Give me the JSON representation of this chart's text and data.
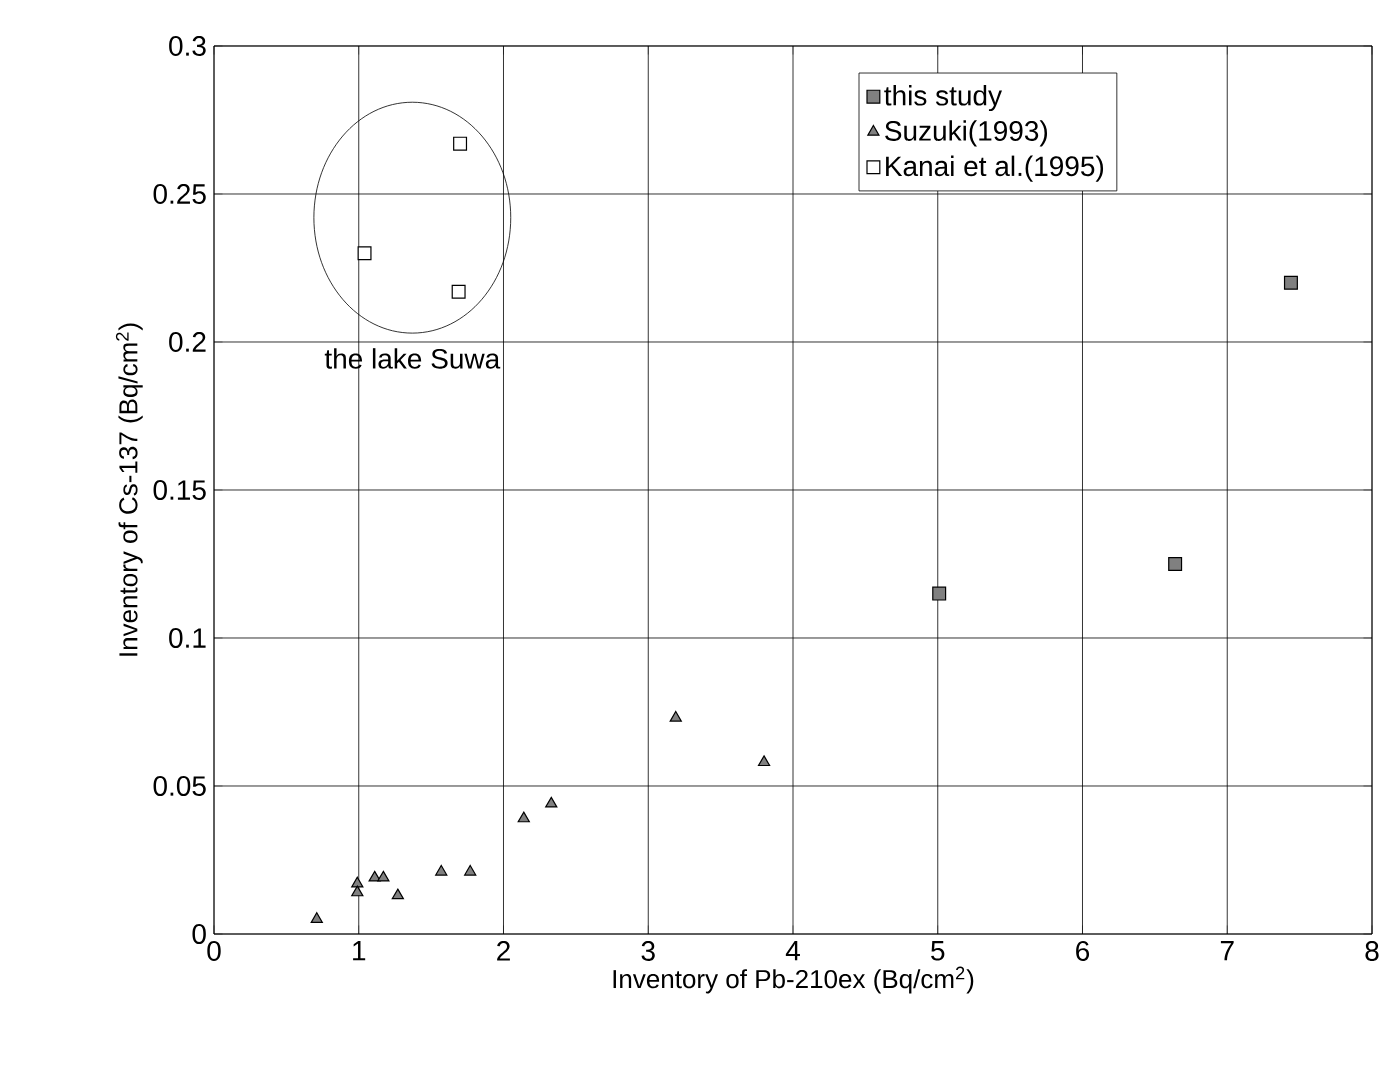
{
  "chart_data": {
    "type": "scatter",
    "xlabel": "Inventory of Pb-210ex (Bq/cm$^{2}$)",
    "ylabel": "Inventory of Cs-137 (Bq/cm$^{2}$)",
    "xlim": [
      0,
      8
    ],
    "ylim": [
      0,
      0.3
    ],
    "xticks": [
      0,
      1,
      2,
      3,
      4,
      5,
      6,
      7,
      8
    ],
    "yticks": [
      0,
      0.05,
      0.1,
      0.15,
      0.2,
      0.25,
      0.3
    ],
    "grid": true,
    "legend": "top right",
    "annotations": [
      "the lake Suwa"
    ],
    "series": [
      {
        "name": "this study",
        "color": "#808080",
        "marker": "square",
        "x": [
          5.01,
          6.64,
          7.44
        ],
        "values": [
          0.115,
          0.125,
          0.22
        ]
      },
      {
        "name": "Suzuki(1993)",
        "color": "#808080",
        "marker": "triangle",
        "x": [
          0.71,
          0.99,
          0.99,
          1.11,
          1.17,
          1.27,
          1.57,
          1.77,
          2.14,
          2.33,
          3.19,
          3.8
        ],
        "values": [
          0.005,
          0.017,
          0.014,
          0.019,
          0.019,
          0.013,
          0.021,
          0.021,
          0.039,
          0.044,
          0.073,
          0.058
        ]
      },
      {
        "name": "Kanai et al.(1995)",
        "color": "#ffffff",
        "marker": "square",
        "x": [
          1.7,
          1.04,
          1.69
        ],
        "values": [
          0.267,
          0.23,
          0.217
        ]
      }
    ]
  }
}
